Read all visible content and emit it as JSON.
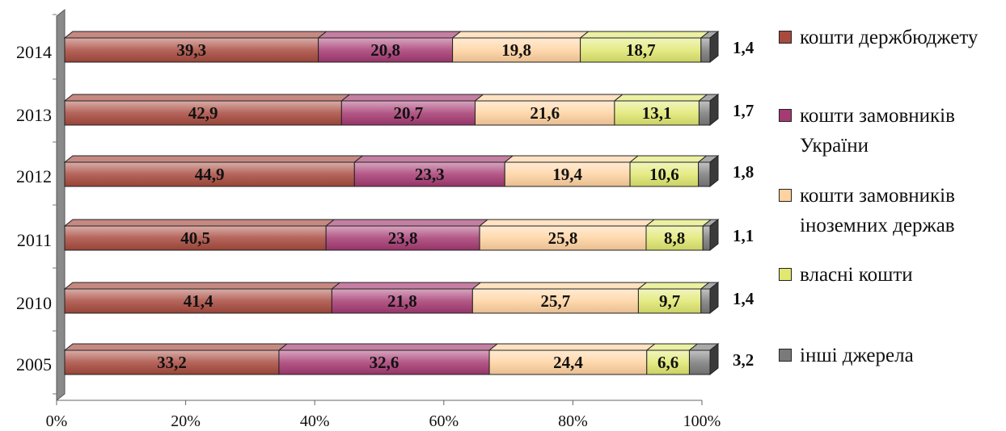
{
  "chart_data": {
    "type": "bar",
    "orientation": "horizontal",
    "stacked": "percent",
    "categories": [
      "2014",
      "2013",
      "2012",
      "2011",
      "2010",
      "2005"
    ],
    "series": [
      {
        "name": "кошти держбюджету",
        "color": "#a84a3e",
        "values": [
          39.3,
          42.9,
          44.9,
          40.5,
          41.4,
          33.2
        ]
      },
      {
        "name": "кошти замовників України",
        "color": "#a63a72",
        "values": [
          20.8,
          20.7,
          23.3,
          23.8,
          21.8,
          32.6
        ]
      },
      {
        "name": "кошти замовників іноземних держав",
        "color": "#ffd2a0",
        "values": [
          19.8,
          21.6,
          19.4,
          25.8,
          25.7,
          24.4
        ]
      },
      {
        "name": "власні кошти",
        "color": "#e0e870",
        "values": [
          18.7,
          13.1,
          10.6,
          8.8,
          9.7,
          6.6
        ]
      },
      {
        "name": "інші джерела",
        "color": "#7a7a7a",
        "values": [
          1.4,
          1.7,
          1.8,
          1.1,
          1.4,
          3.2
        ]
      }
    ],
    "data_labels": [
      [
        "39,3",
        "20,8",
        "19,8",
        "18,7",
        "1,4"
      ],
      [
        "42,9",
        "20,7",
        "21,6",
        "13,1",
        "1,7"
      ],
      [
        "44,9",
        "23,3",
        "19,4",
        "10,6",
        "1,8"
      ],
      [
        "40,5",
        "23,8",
        "25,8",
        "8,8",
        "1,1"
      ],
      [
        "41,4",
        "21,8",
        "25,7",
        "9,7",
        "1,4"
      ],
      [
        "33,2",
        "32,6",
        "24,4",
        "6,6",
        "3,2"
      ]
    ],
    "x_ticks": [
      "0%",
      "20%",
      "40%",
      "60%",
      "80%",
      "100%"
    ],
    "xlim": [
      0,
      100
    ],
    "legend_position": "right",
    "grid": false
  }
}
